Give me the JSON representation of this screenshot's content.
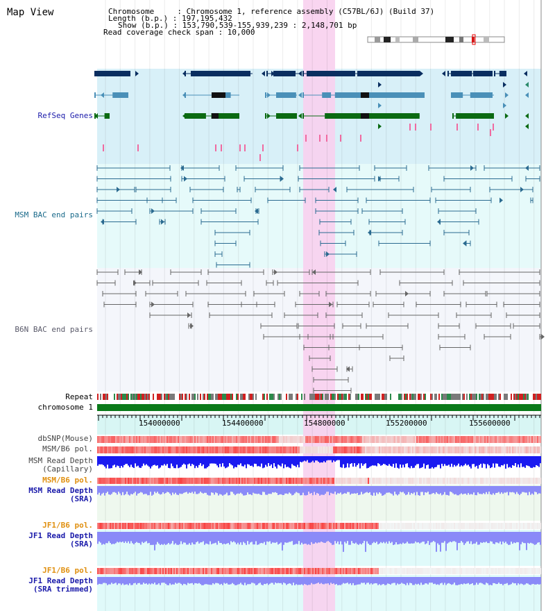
{
  "title": "Map View",
  "info": {
    "chromosome": "Chromosome     : Chromosome 1, reference assembly (C57BL/6J) (Build 37)",
    "length": "Length (b.p.) : 197,195,432",
    "show": "Show (b.p.) : 153,790,539-155,939,239 : 2,148,701 bp",
    "coverage": "Read coverage check span : 10,000"
  },
  "tracks": {
    "refseq": "RefSeq Genes",
    "msm_bac": "MSM BAC end pairs",
    "b6n_bac": "B6N BAC end pairs",
    "repeat": "Repeat",
    "chromosome": "chromosome 1",
    "dbsnp": "dbSNP(Mouse)",
    "msm_b6_pol_1": "MSM/B6 pol.",
    "msm_read_depth_cap_1": "MSM Read Depth",
    "msm_read_depth_cap_2": "(Capillary)",
    "msm_b6_pol_2": "MSM/B6 pol.",
    "msm_read_depth_sra_1": "MSM Read Depth",
    "msm_read_depth_sra_2": "(SRA)",
    "jf1_b6_pol_1": "JF1/B6 pol.",
    "jf1_read_depth_sra_1": "JF1 Read Depth",
    "jf1_read_depth_sra_2": "(SRA)",
    "jf1_b6_pol_2": "JF1/B6 pol.",
    "jf1_read_depth_trim_1": "JF1 Read Depth",
    "jf1_read_depth_trim_2": "(SRA trimmed)"
  },
  "axis_ticks": [
    "154000000",
    "154400000",
    "154800000",
    "155200000",
    "155600000"
  ],
  "colors": {
    "refseq_bg": "#d8f0f8",
    "msm_bg": "#e6fafa",
    "b6n_bg": "#f4f6fb",
    "highlight": "#f8d0ee",
    "gene_dark": "#0a2e60",
    "gene_mid": "#4a90b8",
    "gene_green": "#0a6a12",
    "msm_pair": "#2a6a90",
    "b6n_pair": "#666666",
    "chromosome_bar": "#0a7a1a",
    "label_blue": "#1a1aaa",
    "label_teal": "#1a6a8a",
    "label_orange": "#e09010",
    "depth_blue": "#1a1af0",
    "depth_light": "#8a8af8"
  }
}
